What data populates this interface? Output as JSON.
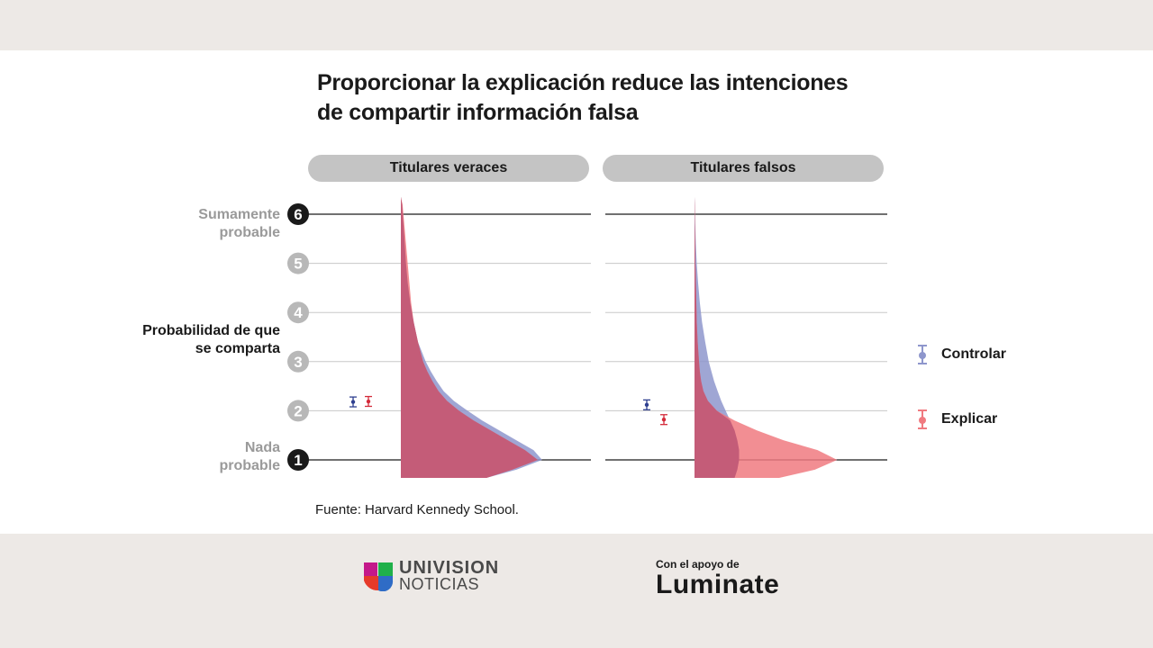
{
  "title_lines": [
    "Proporcionar la explicación reduce las intenciones",
    "de compartir información falsa"
  ],
  "facets": [
    "Titulares veraces",
    "Titulares falsos"
  ],
  "y_axis": {
    "ticks": [
      1,
      2,
      3,
      4,
      5,
      6
    ],
    "top_label": [
      "Sumamente",
      "probable"
    ],
    "middle_label": [
      "Probabilidad de que",
      "se comparta"
    ],
    "bottom_label": [
      "Nada",
      "probable"
    ]
  },
  "legend": [
    {
      "label": "Controlar",
      "color": "#8e96cc"
    },
    {
      "label": "Explicar",
      "color": "#f07a80"
    }
  ],
  "source": "Fuente: Harvard Kennedy School.",
  "footer": {
    "univision_line1": "UNIVISION",
    "univision_line2": "NOTICIAS",
    "support_text": "Con el apoyo de",
    "luminate_text": "Luminate"
  },
  "colors": {
    "control": "#8e96cc",
    "control_mark": "#2e3f8f",
    "explain": "#f07a80",
    "explain_mark": "#d42b3a",
    "overlap": "#c45c78"
  },
  "chart_data": {
    "type": "violin",
    "title": "Proporcionar la explicación reduce las intenciones de compartir información falsa",
    "ylabel": "Probabilidad de que se comparta",
    "ylim": [
      0.6,
      6.4
    ],
    "panels": [
      {
        "name": "Titulares veraces",
        "means": {
          "Controlar": 2.18,
          "Explicar": 2.19
        },
        "ci_halfwidth": 0.1,
        "density": {
          "y": [
            0.6,
            0.8,
            1.0,
            1.2,
            1.4,
            1.6,
            1.8,
            2.0,
            2.2,
            2.4,
            2.6,
            2.8,
            3.0,
            3.4,
            3.8,
            4.2,
            4.6,
            5.0,
            5.4,
            5.8,
            6.2,
            6.35
          ],
          "Controlar": [
            1.0,
            1.35,
            1.65,
            1.55,
            1.35,
            1.15,
            0.95,
            0.78,
            0.62,
            0.5,
            0.42,
            0.35,
            0.29,
            0.2,
            0.15,
            0.11,
            0.08,
            0.06,
            0.045,
            0.03,
            0.015,
            0.0
          ],
          "Explicar": [
            1.0,
            1.3,
            1.6,
            1.45,
            1.25,
            1.05,
            0.85,
            0.68,
            0.54,
            0.44,
            0.37,
            0.31,
            0.26,
            0.2,
            0.15,
            0.12,
            0.1,
            0.08,
            0.06,
            0.04,
            0.02,
            0.0
          ]
        }
      },
      {
        "name": "Titulares falsos",
        "means": {
          "Controlar": 2.12,
          "Explicar": 1.82
        },
        "ci_halfwidth": 0.1,
        "density": {
          "y": [
            0.6,
            0.8,
            1.0,
            1.2,
            1.4,
            1.6,
            1.8,
            2.0,
            2.2,
            2.4,
            2.6,
            2.8,
            3.0,
            3.4,
            3.8,
            4.2,
            4.6,
            5.0,
            5.4,
            5.8,
            6.2,
            6.35
          ],
          "Controlar": [
            0.45,
            0.48,
            0.5,
            0.5,
            0.48,
            0.45,
            0.4,
            0.35,
            0.3,
            0.26,
            0.22,
            0.19,
            0.16,
            0.12,
            0.085,
            0.06,
            0.04,
            0.025,
            0.015,
            0.008,
            0.003,
            0.0
          ],
          "Explicar": [
            0.95,
            1.35,
            1.6,
            1.38,
            1.0,
            0.7,
            0.45,
            0.25,
            0.15,
            0.1,
            0.075,
            0.06,
            0.05,
            0.035,
            0.025,
            0.02,
            0.015,
            0.01,
            0.008,
            0.005,
            0.002,
            0.0
          ]
        }
      }
    ]
  }
}
